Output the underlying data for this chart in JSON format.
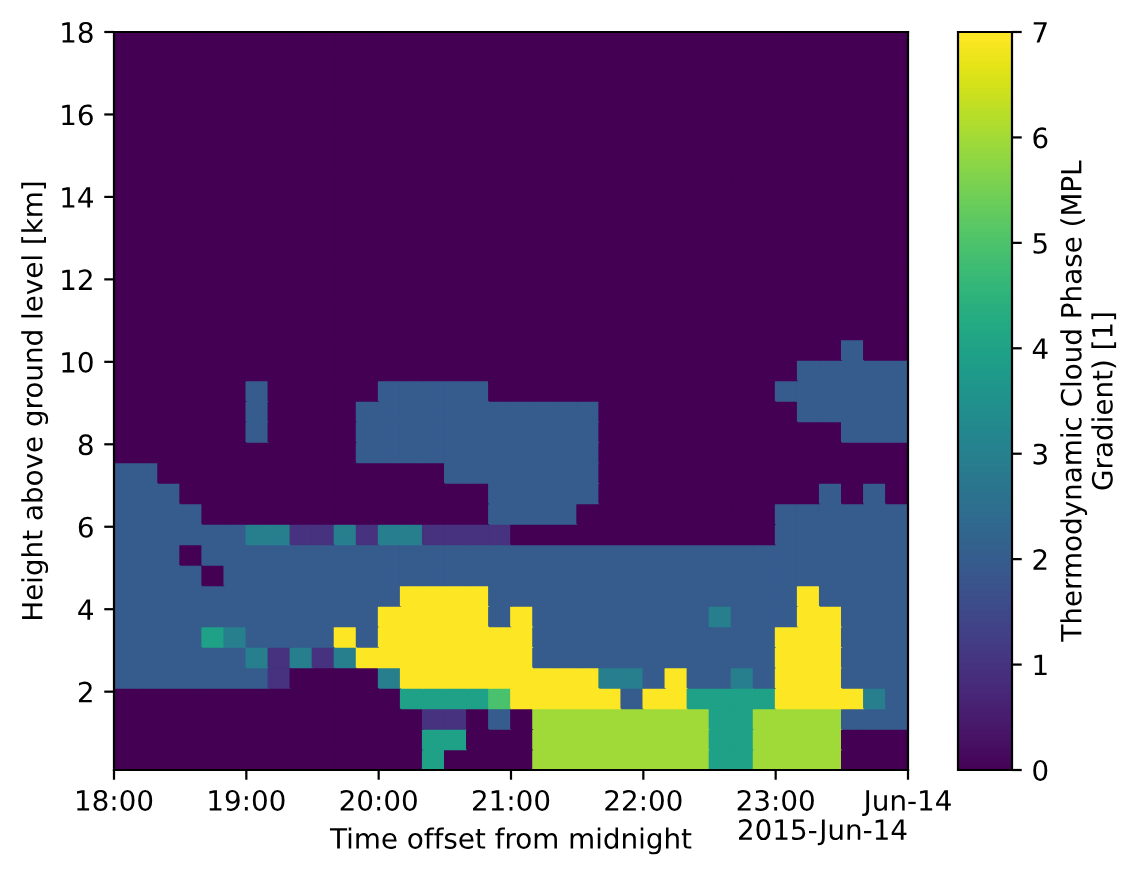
{
  "chart_data": {
    "type": "heatmap",
    "xlabel": "Time offset from midnight",
    "ylabel": "Height above ground level [km]",
    "clabel": "Thermodynamic Cloud Phase (MPL\nGradient) [1]",
    "annotations": [
      "2015-Jun-14"
    ],
    "xlim": [
      "2015-06-13T18:00",
      "2015-06-14T00:00"
    ],
    "xticks": [
      {
        "value": "2015-06-13T18:00",
        "label": "18:00"
      },
      {
        "value": "2015-06-13T19:00",
        "label": "19:00"
      },
      {
        "value": "2015-06-13T20:00",
        "label": "20:00"
      },
      {
        "value": "2015-06-13T21:00",
        "label": "21:00"
      },
      {
        "value": "2015-06-13T22:00",
        "label": "22:00"
      },
      {
        "value": "2015-06-13T23:00",
        "label": "23:00"
      },
      {
        "value": "2015-06-14T00:00",
        "label": "Jun-14"
      }
    ],
    "ylim": [
      0.1,
      18
    ],
    "yticks": [
      2,
      4,
      6,
      8,
      10,
      12,
      14,
      16,
      18
    ],
    "clim": [
      0,
      7
    ],
    "cticks": [
      0,
      1,
      2,
      3,
      4,
      5,
      6,
      7
    ],
    "x": [
      "2015-06-13T18:05",
      "2015-06-13T18:15",
      "2015-06-13T18:25",
      "2015-06-13T18:35",
      "2015-06-13T18:45",
      "2015-06-13T18:55",
      "2015-06-13T19:05",
      "2015-06-13T19:15",
      "2015-06-13T19:25",
      "2015-06-13T19:35",
      "2015-06-13T19:45",
      "2015-06-13T19:55",
      "2015-06-13T20:05",
      "2015-06-13T20:15",
      "2015-06-13T20:25",
      "2015-06-13T20:35",
      "2015-06-13T20:45",
      "2015-06-13T20:55",
      "2015-06-13T21:05",
      "2015-06-13T21:15",
      "2015-06-13T21:25",
      "2015-06-13T21:35",
      "2015-06-13T21:45",
      "2015-06-13T21:55",
      "2015-06-13T22:05",
      "2015-06-13T22:15",
      "2015-06-13T22:25",
      "2015-06-13T22:35",
      "2015-06-13T22:45",
      "2015-06-13T22:55",
      "2015-06-13T23:05",
      "2015-06-13T23:15",
      "2015-06-13T23:25",
      "2015-06-13T23:35",
      "2015-06-13T23:45",
      "2015-06-13T23:55"
    ],
    "cells": [
      [
        0,
        0,
        0,
        0,
        0,
        0,
        0,
        0,
        0,
        0,
        0,
        0,
        0,
        0,
        0,
        0,
        0,
        0,
        0,
        0,
        0,
        0,
        0,
        0,
        0,
        0,
        0,
        0,
        0,
        0,
        0,
        0,
        0,
        0,
        0,
        0
      ],
      [
        0,
        0,
        0,
        0,
        0,
        0,
        0,
        0,
        0,
        0,
        0,
        0,
        0,
        0,
        0,
        0,
        0,
        0,
        0,
        0,
        0,
        0,
        0,
        0,
        0,
        0,
        0,
        0,
        0,
        0,
        0,
        0,
        0,
        0,
        0,
        0
      ],
      [
        0,
        0,
        0,
        0,
        0,
        0,
        0,
        0,
        0,
        0,
        0,
        0,
        0,
        0,
        0,
        0,
        0,
        0,
        0,
        0,
        0,
        0,
        0,
        0,
        0,
        0,
        0,
        0,
        0,
        0,
        0,
        0,
        0,
        0,
        0,
        0
      ],
      [
        0,
        0,
        0,
        0,
        0,
        0,
        0,
        0,
        0,
        0,
        0,
        0,
        0,
        0,
        0,
        0,
        0,
        0,
        0,
        0,
        0,
        0,
        0,
        0,
        0,
        0,
        0,
        0,
        0,
        0,
        0,
        0,
        0,
        0,
        0,
        0
      ],
      [
        0,
        0,
        0,
        0,
        0,
        0,
        0,
        0,
        0,
        0,
        0,
        0,
        0,
        0,
        0,
        0,
        0,
        0,
        0,
        0,
        0,
        0,
        0,
        0,
        0,
        0,
        0,
        0,
        0,
        0,
        0,
        0,
        0,
        0,
        0,
        0
      ],
      [
        0,
        0,
        0,
        0,
        0,
        0,
        0,
        0,
        0,
        0,
        0,
        0,
        0,
        0,
        0,
        0,
        0,
        0,
        0,
        0,
        0,
        0,
        0,
        0,
        0,
        0,
        0,
        0,
        0,
        0,
        0,
        0,
        0,
        0,
        0,
        0
      ],
      [
        0,
        0,
        0,
        0,
        0,
        0,
        0,
        0,
        0,
        0,
        0,
        0,
        0,
        0,
        0,
        0,
        0,
        0,
        0,
        0,
        0,
        0,
        0,
        0,
        0,
        0,
        0,
        0,
        0,
        0,
        0,
        0,
        0,
        0,
        0,
        0
      ],
      [
        0,
        0,
        0,
        0,
        0,
        0,
        0,
        0,
        0,
        0,
        0,
        0,
        0,
        0,
        0,
        0,
        0,
        0,
        0,
        0,
        0,
        0,
        0,
        0,
        0,
        0,
        0,
        0,
        0,
        0,
        0,
        0,
        0,
        0,
        0,
        0
      ],
      [
        0,
        0,
        0,
        0,
        0,
        0,
        0,
        0,
        0,
        0,
        0,
        0,
        0,
        0,
        0,
        0,
        0,
        0,
        0,
        0,
        0,
        0,
        0,
        0,
        0,
        0,
        0,
        0,
        0,
        0,
        0,
        0,
        0,
        0,
        0,
        0
      ],
      [
        0,
        0,
        0,
        0,
        0,
        0,
        0,
        0,
        0,
        0,
        0,
        0,
        0,
        0,
        0,
        0,
        0,
        0,
        0,
        0,
        0,
        0,
        0,
        0,
        0,
        0,
        0,
        0,
        0,
        0,
        0,
        0,
        0,
        0,
        0,
        0
      ],
      [
        0,
        0,
        0,
        0,
        0,
        0,
        0,
        0,
        0,
        0,
        0,
        0,
        0,
        0,
        0,
        0,
        0,
        0,
        0,
        0,
        0,
        0,
        0,
        0,
        0,
        0,
        0,
        0,
        0,
        0,
        0,
        0,
        0,
        0,
        0,
        0
      ],
      [
        0,
        0,
        0,
        0,
        0,
        0,
        0,
        0,
        0,
        0,
        0,
        0,
        0,
        0,
        0,
        0,
        0,
        0,
        0,
        0,
        0,
        0,
        0,
        0,
        0,
        0,
        0,
        0,
        0,
        0,
        0,
        0,
        0,
        0,
        0,
        0
      ],
      [
        0,
        0,
        0,
        0,
        0,
        0,
        0,
        0,
        0,
        0,
        0,
        0,
        0,
        0,
        0,
        0,
        0,
        0,
        0,
        0,
        0,
        0,
        0,
        0,
        0,
        0,
        0,
        0,
        0,
        0,
        0,
        0,
        0,
        0,
        0,
        0
      ],
      [
        0,
        0,
        0,
        0,
        0,
        0,
        0,
        0,
        0,
        0,
        0,
        0,
        0,
        0,
        0,
        0,
        0,
        0,
        0,
        0,
        0,
        0,
        0,
        0,
        0,
        0,
        0,
        0,
        0,
        0,
        0,
        0,
        0,
        0,
        0,
        0
      ],
      [
        0,
        0,
        0,
        0,
        0,
        0,
        0,
        0,
        0,
        0,
        0,
        0,
        0,
        0,
        0,
        0,
        0,
        0,
        0,
        0,
        0,
        0,
        0,
        0,
        0,
        0,
        0,
        0,
        0,
        0,
        0,
        0,
        0,
        0,
        0,
        0
      ],
      [
        0,
        0,
        0,
        0,
        0,
        0,
        0,
        0,
        0,
        0,
        0,
        0,
        0,
        0,
        0,
        0,
        0,
        0,
        0,
        0,
        0,
        0,
        0,
        0,
        0,
        0,
        0,
        0,
        0,
        0,
        0,
        0,
        0,
        2,
        0,
        0
      ],
      [
        0,
        0,
        0,
        0,
        0,
        0,
        0,
        0,
        0,
        0,
        0,
        0,
        0,
        0,
        0,
        0,
        0,
        0,
        0,
        0,
        0,
        0,
        0,
        0,
        0,
        0,
        0,
        0,
        0,
        0,
        0,
        2,
        2,
        2,
        2,
        2
      ],
      [
        0,
        0,
        0,
        0,
        0,
        0,
        2,
        0,
        0,
        0,
        0,
        0,
        2,
        2,
        2,
        2,
        2,
        0,
        0,
        0,
        0,
        0,
        0,
        0,
        0,
        0,
        0,
        0,
        0,
        0,
        2,
        2,
        2,
        2,
        2,
        2
      ],
      [
        0,
        0,
        0,
        0,
        0,
        0,
        2,
        0,
        0,
        0,
        0,
        2,
        2,
        2,
        2,
        2,
        2,
        2,
        2,
        2,
        2,
        2,
        0,
        0,
        0,
        0,
        0,
        0,
        0,
        0,
        0,
        2,
        2,
        2,
        2,
        2
      ],
      [
        0,
        0,
        0,
        0,
        0,
        0,
        2,
        0,
        0,
        0,
        0,
        2,
        2,
        2,
        2,
        2,
        2,
        2,
        2,
        2,
        2,
        2,
        0,
        0,
        0,
        0,
        0,
        0,
        0,
        0,
        0,
        0,
        0,
        2,
        2,
        2
      ],
      [
        0,
        0,
        0,
        0,
        0,
        0,
        0,
        0,
        0,
        0,
        0,
        2,
        2,
        2,
        2,
        2,
        2,
        2,
        2,
        2,
        2,
        2,
        0,
        0,
        0,
        0,
        0,
        0,
        0,
        0,
        0,
        0,
        0,
        0,
        0,
        0
      ],
      [
        2,
        2,
        0,
        0,
        0,
        0,
        0,
        0,
        0,
        0,
        0,
        0,
        0,
        0,
        0,
        2,
        2,
        2,
        2,
        2,
        2,
        2,
        0,
        0,
        0,
        0,
        0,
        0,
        0,
        0,
        0,
        0,
        0,
        0,
        0,
        0
      ],
      [
        2,
        2,
        2,
        0,
        0,
        0,
        0,
        0,
        0,
        0,
        0,
        0,
        0,
        0,
        0,
        0,
        0,
        2,
        2,
        2,
        2,
        2,
        0,
        0,
        0,
        0,
        0,
        0,
        0,
        0,
        0,
        0,
        2,
        0,
        2,
        0
      ],
      [
        2,
        2,
        2,
        2,
        0,
        0,
        0,
        0,
        0,
        0,
        0,
        0,
        0,
        0,
        0,
        0,
        0,
        2,
        2,
        2,
        2,
        0,
        0,
        0,
        0,
        0,
        0,
        0,
        0,
        0,
        2,
        2,
        2,
        2,
        2,
        2
      ],
      [
        2,
        2,
        2,
        2,
        2,
        2,
        3,
        3,
        1,
        1,
        3,
        1,
        3,
        3,
        1,
        1,
        1,
        1,
        0,
        0,
        0,
        0,
        0,
        0,
        0,
        0,
        0,
        0,
        0,
        0,
        2,
        2,
        2,
        2,
        2,
        2
      ],
      [
        2,
        2,
        2,
        0,
        2,
        2,
        2,
        2,
        2,
        2,
        2,
        2,
        2,
        2,
        2,
        2,
        2,
        2,
        2,
        2,
        2,
        2,
        2,
        2,
        2,
        2,
        2,
        2,
        2,
        2,
        2,
        2,
        2,
        2,
        2,
        2
      ],
      [
        2,
        2,
        2,
        2,
        0,
        2,
        2,
        2,
        2,
        2,
        2,
        2,
        2,
        2,
        2,
        2,
        2,
        2,
        2,
        2,
        2,
        2,
        2,
        2,
        2,
        2,
        2,
        2,
        2,
        2,
        2,
        2,
        2,
        2,
        2,
        2
      ],
      [
        2,
        2,
        2,
        2,
        2,
        2,
        2,
        2,
        2,
        2,
        2,
        2,
        2,
        7,
        7,
        7,
        7,
        2,
        2,
        2,
        2,
        2,
        2,
        2,
        2,
        2,
        2,
        2,
        2,
        2,
        2,
        7,
        2,
        2,
        2,
        2
      ],
      [
        2,
        2,
        2,
        2,
        2,
        2,
        2,
        2,
        2,
        2,
        2,
        2,
        7,
        7,
        7,
        7,
        7,
        2,
        7,
        2,
        2,
        2,
        2,
        2,
        2,
        2,
        2,
        3,
        2,
        2,
        2,
        7,
        7,
        2,
        2,
        2
      ],
      [
        2,
        2,
        2,
        2,
        4,
        3,
        2,
        2,
        2,
        2,
        7,
        2,
        7,
        7,
        7,
        7,
        7,
        7,
        7,
        2,
        2,
        2,
        2,
        2,
        2,
        2,
        2,
        2,
        2,
        2,
        7,
        7,
        7,
        2,
        2,
        2
      ],
      [
        2,
        2,
        2,
        2,
        2,
        2,
        3,
        1,
        3,
        1,
        3,
        7,
        7,
        7,
        7,
        7,
        7,
        7,
        7,
        2,
        2,
        2,
        2,
        2,
        2,
        2,
        2,
        2,
        2,
        2,
        7,
        7,
        7,
        2,
        2,
        2
      ],
      [
        2,
        2,
        2,
        2,
        2,
        2,
        2,
        1,
        0,
        0,
        0,
        0,
        3,
        7,
        7,
        7,
        7,
        7,
        7,
        7,
        7,
        7,
        3,
        3,
        2,
        7,
        2,
        2,
        3,
        2,
        7,
        7,
        7,
        2,
        2,
        2
      ],
      [
        0,
        0,
        0,
        0,
        0,
        0,
        0,
        0,
        0,
        0,
        0,
        0,
        0,
        4,
        4,
        4,
        4,
        5,
        7,
        7,
        7,
        7,
        7,
        2,
        7,
        7,
        4,
        4,
        4,
        4,
        7,
        7,
        7,
        7,
        3,
        2
      ],
      [
        0,
        0,
        0,
        0,
        0,
        0,
        0,
        0,
        0,
        0,
        0,
        0,
        0,
        0,
        1,
        1,
        0,
        2,
        0,
        6,
        6,
        6,
        6,
        6,
        6,
        6,
        6,
        4,
        4,
        6,
        6,
        6,
        6,
        2,
        2,
        2
      ],
      [
        0,
        0,
        0,
        0,
        0,
        0,
        0,
        0,
        0,
        0,
        0,
        0,
        0,
        0,
        4,
        4,
        0,
        0,
        0,
        6,
        6,
        6,
        6,
        6,
        6,
        6,
        6,
        4,
        4,
        6,
        6,
        6,
        6,
        0,
        0,
        0
      ],
      [
        0,
        0,
        0,
        0,
        0,
        0,
        0,
        0,
        0,
        0,
        0,
        0,
        0,
        0,
        4,
        0,
        0,
        0,
        0,
        6,
        6,
        6,
        6,
        6,
        6,
        6,
        6,
        4,
        4,
        6,
        6,
        6,
        6,
        0,
        0,
        0
      ]
    ]
  }
}
